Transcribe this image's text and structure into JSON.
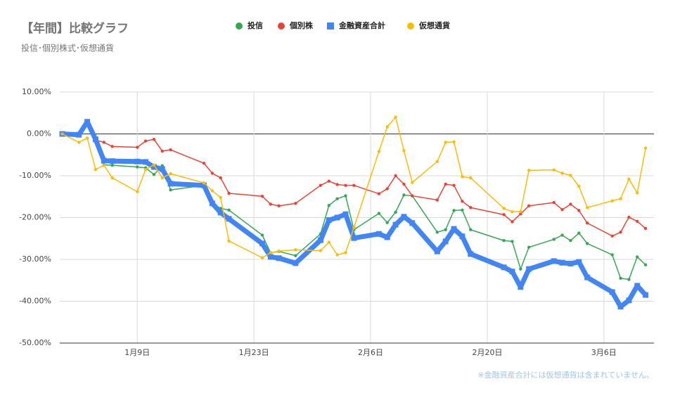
{
  "chart_data": {
    "type": "line",
    "title": "【年間】比較グラフ",
    "subtitle": "投信･個別株式･仮想通貨",
    "note": "※金融資産合計には仮想通貨は含まれていません。",
    "x": [
      0,
      2,
      3,
      4,
      5,
      6,
      9,
      10,
      11,
      12,
      13,
      17,
      18,
      19,
      20,
      24,
      25,
      26,
      28,
      31,
      32,
      33,
      34,
      35,
      38,
      39,
      40,
      41,
      42,
      45,
      46,
      47,
      48,
      49,
      53,
      54,
      55,
      56,
      59,
      60,
      61,
      62,
      63,
      66,
      67,
      68,
      69,
      70
    ],
    "xlim": [
      -0.3,
      71
    ],
    "xticks": [
      {
        "value": 9,
        "label": "1月9日"
      },
      {
        "value": 23,
        "label": "1月23日"
      },
      {
        "value": 37,
        "label": "2月6日"
      },
      {
        "value": 51,
        "label": "2月20日"
      },
      {
        "value": 65,
        "label": "3月6日"
      }
    ],
    "ylim": [
      -50,
      10
    ],
    "yticks": [
      {
        "value": -50,
        "label": "-50.00%"
      },
      {
        "value": -40,
        "label": "-40.00%"
      },
      {
        "value": -30,
        "label": "-30.00%"
      },
      {
        "value": -20,
        "label": "-20.00%"
      },
      {
        "value": -10,
        "label": "-10.00%"
      },
      {
        "value": 0,
        "label": "0.00%"
      },
      {
        "value": 10,
        "label": "10.00%"
      }
    ],
    "grid": true,
    "legend": "top",
    "series": [
      {
        "name": "投信",
        "color": "#34a853",
        "marker": "circle",
        "values": [
          0,
          0,
          2.5,
          -1.3,
          -7.4,
          -7.5,
          -7.9,
          -8.1,
          -9.7,
          -7.6,
          -13.4,
          -12.3,
          -16.6,
          -17.8,
          -18.2,
          -24.2,
          -28.4,
          -28.1,
          -29.1,
          -23.9,
          -17.1,
          -15.5,
          -14.8,
          -22.9,
          -19.0,
          -21.2,
          -18.7,
          -14.6,
          -14.8,
          -23.5,
          -22.9,
          -18.3,
          -18.2,
          -22.9,
          -25.5,
          -25.7,
          -32.3,
          -27.1,
          -25.2,
          -24.2,
          -25.5,
          -23.7,
          -26.2,
          -28.9,
          -34.5,
          -34.8,
          -29.4,
          -31.3
        ]
      },
      {
        "name": "個別株",
        "color": "#ea4335",
        "marker": "circle",
        "values": [
          0,
          0,
          2.5,
          -1.5,
          -2.0,
          -3.0,
          -3.2,
          -1.7,
          -1.3,
          -4.1,
          -3.8,
          -7.0,
          -9.4,
          -10.5,
          -14.2,
          -14.9,
          -16.8,
          -17.2,
          -16.6,
          -12.3,
          -11.3,
          -12.1,
          -12.3,
          -12.3,
          -14.3,
          -13.1,
          -10.0,
          -12.0,
          -14.8,
          -15.8,
          -12.0,
          -12.3,
          -16.1,
          -17.6,
          -19.3,
          -21.0,
          -19.1,
          -17.2,
          -16.4,
          -18.1,
          -16.8,
          -18.3,
          -21.3,
          -24.4,
          -23.5,
          -19.9,
          -20.9,
          -22.6
        ]
      },
      {
        "name": "金融資産合計",
        "color": "#4285f4",
        "marker": "square",
        "values": [
          0,
          -0.2,
          2.9,
          -1.3,
          -6.4,
          -6.5,
          -6.6,
          -6.7,
          -7.9,
          -8.4,
          -11.9,
          -12.3,
          -16.6,
          -18.8,
          -20.3,
          -26.2,
          -29.4,
          -29.7,
          -30.9,
          -25.4,
          -20.6,
          -20.0,
          -19.2,
          -24.9,
          -23.9,
          -24.7,
          -21.7,
          -19.8,
          -21.3,
          -28.1,
          -25.7,
          -22.7,
          -24.5,
          -28.7,
          -31.9,
          -32.9,
          -36.6,
          -32.3,
          -30.4,
          -30.8,
          -31.0,
          -30.6,
          -34.3,
          -37.8,
          -41.3,
          -39.8,
          -36.3,
          -38.5
        ]
      },
      {
        "name": "仮想通貨",
        "color": "#fbbc04",
        "marker": "circle",
        "values": [
          0,
          -2.0,
          -1.0,
          -8.5,
          -7.5,
          -10.5,
          -13.8,
          -8.5,
          -7.4,
          -10.5,
          -9.5,
          -11.7,
          -13.6,
          -15.2,
          -25.6,
          -29.6,
          -28.4,
          -28.0,
          -27.7,
          -27.9,
          -25.9,
          -28.9,
          -28.4,
          -22.4,
          -4.2,
          1.7,
          4.0,
          -4.0,
          -11.6,
          -6.6,
          -2.0,
          -1.9,
          -10.2,
          -10.5,
          -17.8,
          -18.6,
          -18.6,
          -8.7,
          -8.6,
          -9.4,
          -9.9,
          -12.5,
          -17.6,
          -16.0,
          -15.5,
          -10.8,
          -14.1,
          -3.4
        ]
      }
    ]
  }
}
